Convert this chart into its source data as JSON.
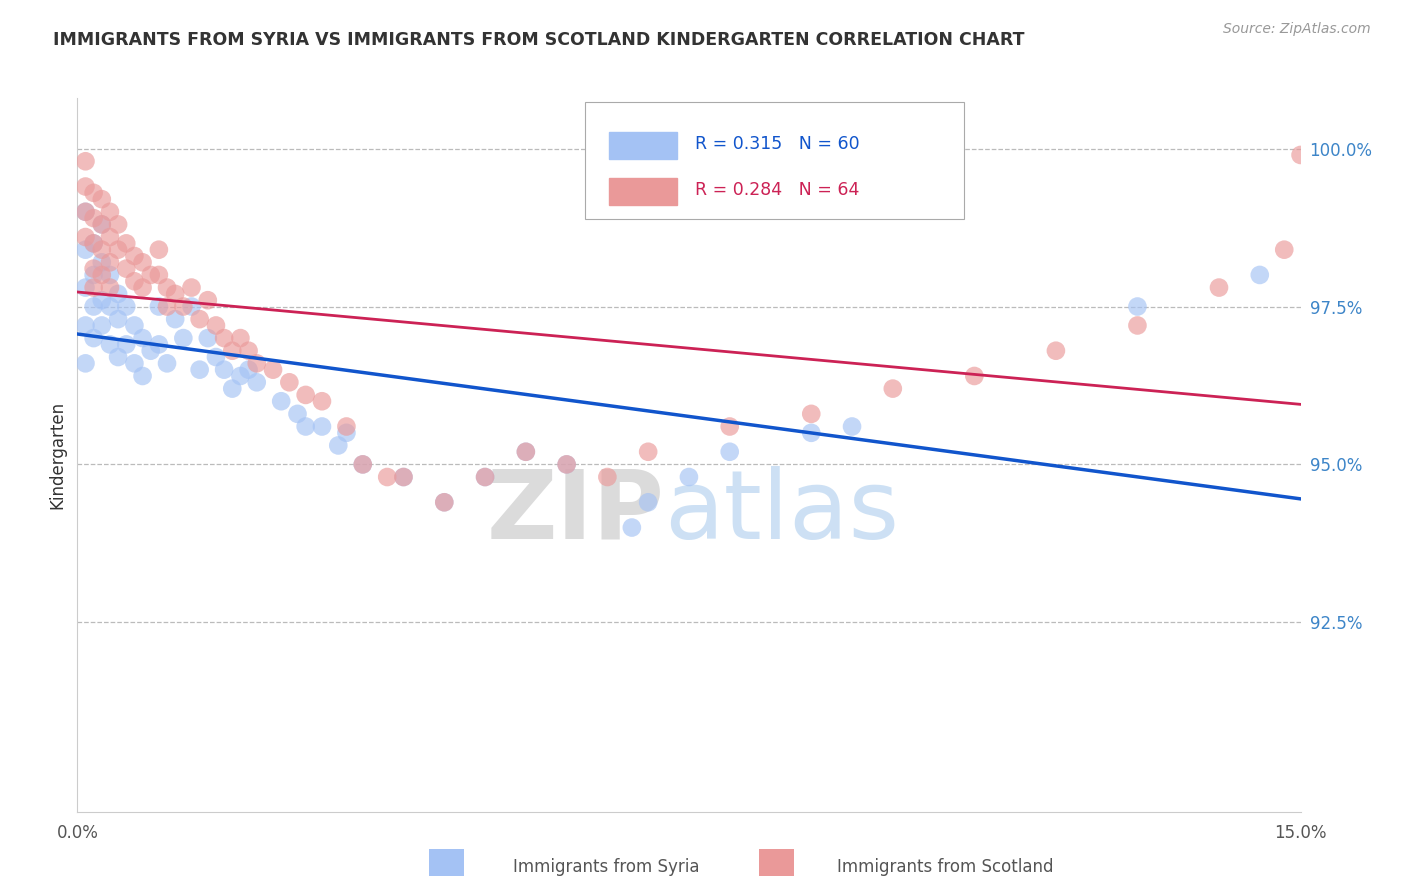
{
  "title": "IMMIGRANTS FROM SYRIA VS IMMIGRANTS FROM SCOTLAND KINDERGARTEN CORRELATION CHART",
  "source": "Source: ZipAtlas.com",
  "ylabel": "Kindergarten",
  "syria_R": 0.315,
  "syria_N": 60,
  "scotland_R": 0.284,
  "scotland_N": 64,
  "syria_color": "#a4c2f4",
  "scotland_color": "#ea9999",
  "syria_line_color": "#1155cc",
  "scotland_line_color": "#cc2255",
  "xmin": 0.0,
  "xmax": 0.15,
  "ymin": 0.895,
  "ymax": 1.008,
  "ylabel_right_labels": [
    "100.0%",
    "97.5%",
    "95.0%",
    "92.5%"
  ],
  "ylabel_right_values": [
    1.0,
    0.975,
    0.95,
    0.925
  ],
  "syria_x": [
    0.001,
    0.001,
    0.001,
    0.001,
    0.001,
    0.002,
    0.002,
    0.002,
    0.002,
    0.003,
    0.003,
    0.003,
    0.003,
    0.004,
    0.004,
    0.004,
    0.005,
    0.005,
    0.005,
    0.006,
    0.006,
    0.007,
    0.007,
    0.008,
    0.008,
    0.009,
    0.01,
    0.01,
    0.011,
    0.012,
    0.013,
    0.014,
    0.015,
    0.016,
    0.017,
    0.018,
    0.019,
    0.02,
    0.021,
    0.022,
    0.025,
    0.027,
    0.028,
    0.03,
    0.032,
    0.033,
    0.035,
    0.04,
    0.045,
    0.05,
    0.055,
    0.06,
    0.068,
    0.07,
    0.075,
    0.08,
    0.09,
    0.095,
    0.13,
    0.145
  ],
  "syria_y": [
    0.99,
    0.984,
    0.978,
    0.972,
    0.966,
    0.985,
    0.98,
    0.975,
    0.97,
    0.988,
    0.982,
    0.976,
    0.972,
    0.98,
    0.975,
    0.969,
    0.977,
    0.973,
    0.967,
    0.975,
    0.969,
    0.972,
    0.966,
    0.97,
    0.964,
    0.968,
    0.975,
    0.969,
    0.966,
    0.973,
    0.97,
    0.975,
    0.965,
    0.97,
    0.967,
    0.965,
    0.962,
    0.964,
    0.965,
    0.963,
    0.96,
    0.958,
    0.956,
    0.956,
    0.953,
    0.955,
    0.95,
    0.948,
    0.944,
    0.948,
    0.952,
    0.95,
    0.94,
    0.944,
    0.948,
    0.952,
    0.955,
    0.956,
    0.975,
    0.98
  ],
  "scotland_x": [
    0.001,
    0.001,
    0.001,
    0.001,
    0.002,
    0.002,
    0.002,
    0.002,
    0.002,
    0.003,
    0.003,
    0.003,
    0.003,
    0.004,
    0.004,
    0.004,
    0.004,
    0.005,
    0.005,
    0.006,
    0.006,
    0.007,
    0.007,
    0.008,
    0.008,
    0.009,
    0.01,
    0.01,
    0.011,
    0.011,
    0.012,
    0.013,
    0.014,
    0.015,
    0.016,
    0.017,
    0.018,
    0.019,
    0.02,
    0.021,
    0.022,
    0.024,
    0.026,
    0.028,
    0.03,
    0.033,
    0.035,
    0.038,
    0.04,
    0.045,
    0.05,
    0.055,
    0.06,
    0.065,
    0.07,
    0.08,
    0.09,
    0.1,
    0.11,
    0.12,
    0.13,
    0.14,
    0.148,
    0.15
  ],
  "scotland_y": [
    0.998,
    0.994,
    0.99,
    0.986,
    0.993,
    0.989,
    0.985,
    0.981,
    0.978,
    0.992,
    0.988,
    0.984,
    0.98,
    0.99,
    0.986,
    0.982,
    0.978,
    0.988,
    0.984,
    0.985,
    0.981,
    0.983,
    0.979,
    0.982,
    0.978,
    0.98,
    0.984,
    0.98,
    0.978,
    0.975,
    0.977,
    0.975,
    0.978,
    0.973,
    0.976,
    0.972,
    0.97,
    0.968,
    0.97,
    0.968,
    0.966,
    0.965,
    0.963,
    0.961,
    0.96,
    0.956,
    0.95,
    0.948,
    0.948,
    0.944,
    0.948,
    0.952,
    0.95,
    0.948,
    0.952,
    0.956,
    0.958,
    0.962,
    0.964,
    0.968,
    0.972,
    0.978,
    0.984,
    0.999
  ]
}
